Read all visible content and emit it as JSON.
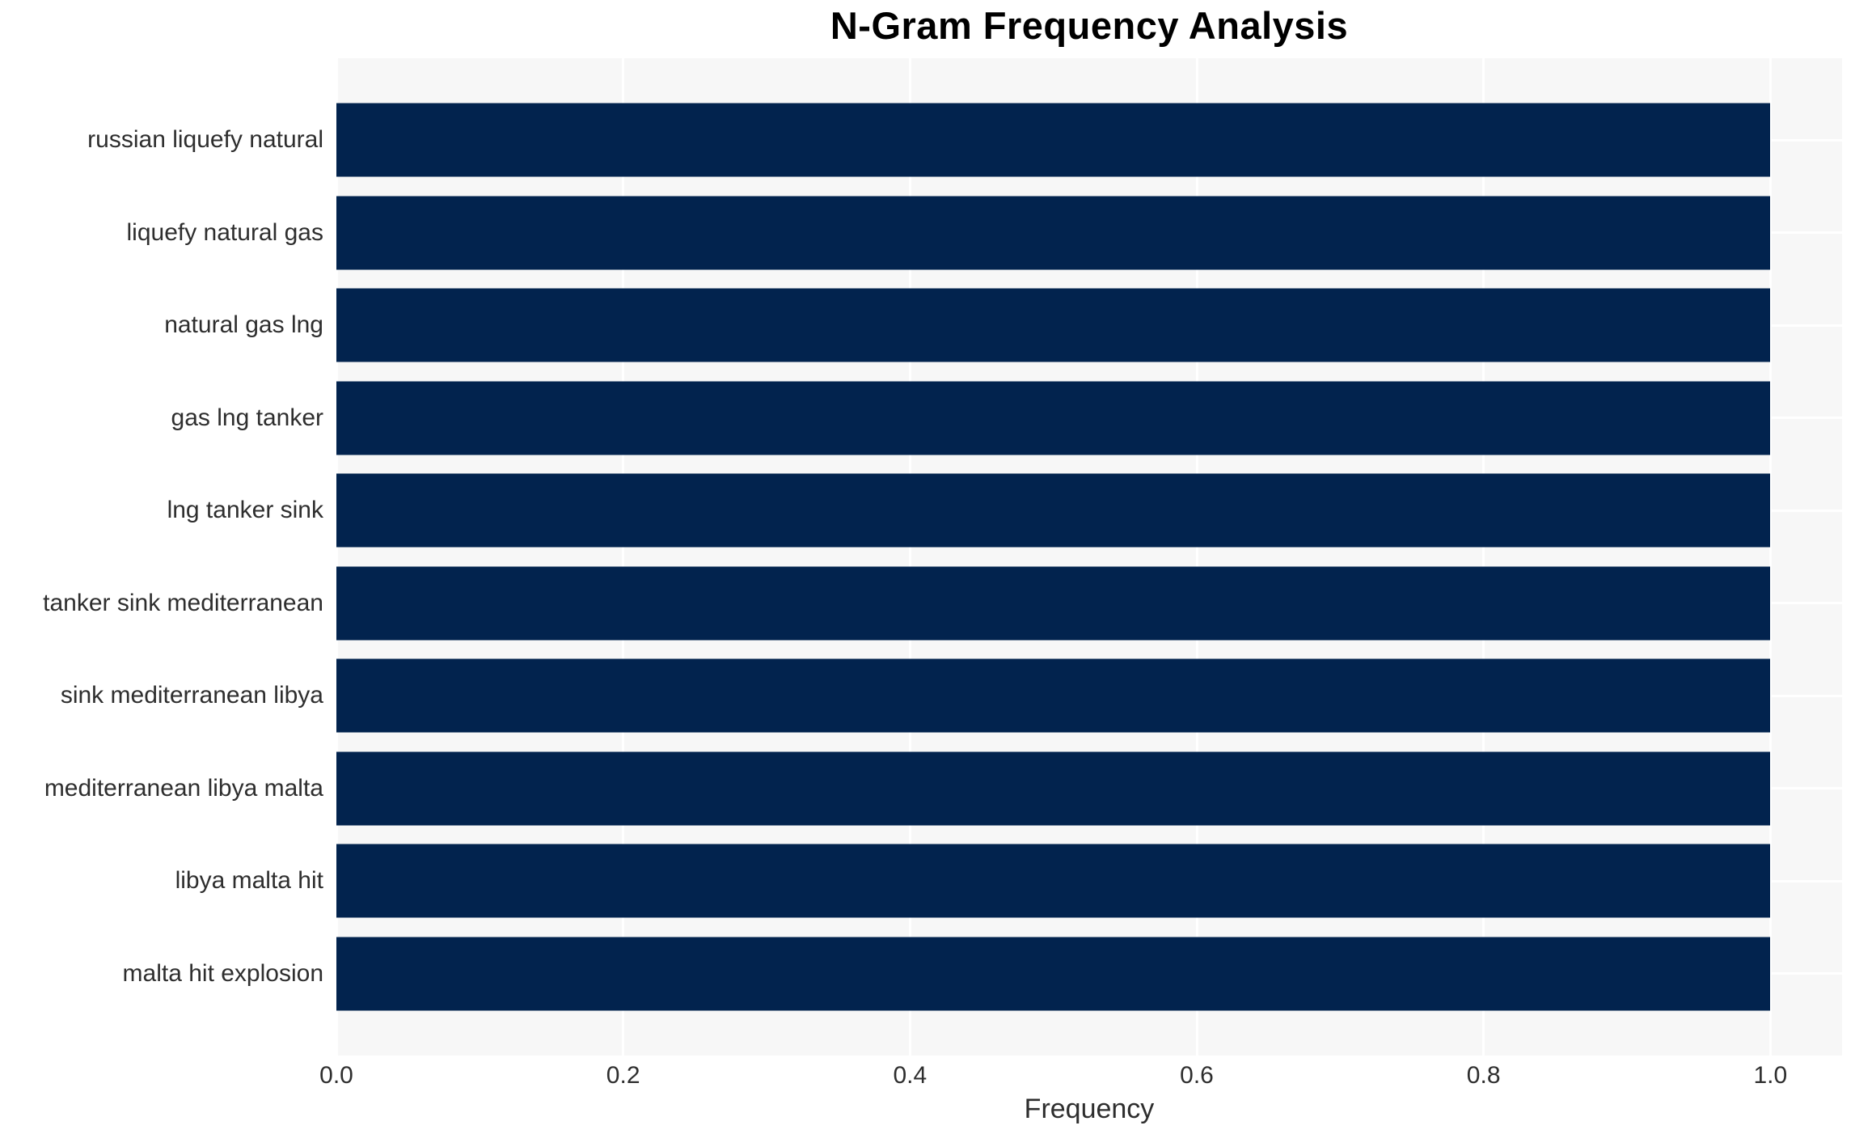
{
  "chart_data": {
    "type": "bar",
    "orientation": "horizontal",
    "title": "N-Gram Frequency Analysis",
    "xlabel": "Frequency",
    "ylabel": "",
    "categories": [
      "russian liquefy natural",
      "liquefy natural gas",
      "natural gas lng",
      "gas lng tanker",
      "lng tanker sink",
      "tanker sink mediterranean",
      "sink mediterranean libya",
      "mediterranean libya malta",
      "libya malta hit",
      "malta hit explosion"
    ],
    "values": [
      1.0,
      1.0,
      1.0,
      1.0,
      1.0,
      1.0,
      1.0,
      1.0,
      1.0,
      1.0
    ],
    "xticks": [
      0.0,
      0.2,
      0.4,
      0.6,
      0.8,
      1.0
    ],
    "xlim": [
      0,
      1.05
    ],
    "grid": true,
    "legend": false,
    "colors": {
      "bar": "#02234e",
      "plot_background": "#f7f7f7",
      "gridline": "#ffffff",
      "title_text": "#000000",
      "tick_text": "#2e2e2e"
    }
  }
}
